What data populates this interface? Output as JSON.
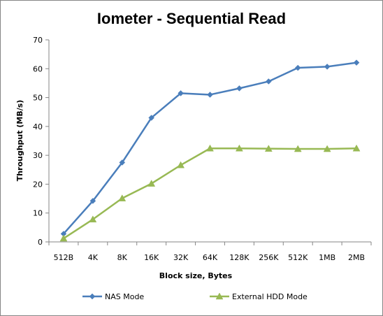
{
  "chart_data": {
    "type": "line",
    "title": "Iometer - Sequential Read",
    "xlabel": "Block size, Bytes",
    "ylabel": "Throughput (MB/s)",
    "categories": [
      "512B",
      "4K",
      "8K",
      "16K",
      "32K",
      "64K",
      "128K",
      "256K",
      "512K",
      "1MB",
      "2MB"
    ],
    "ylim": [
      0,
      70
    ],
    "yticks": [
      0,
      10,
      20,
      30,
      40,
      50,
      60,
      70
    ],
    "grid": false,
    "legend_position": "bottom",
    "series": [
      {
        "name": "NAS Mode",
        "color": "#4a7ebb",
        "marker": "diamond",
        "values": [
          2.8,
          14.2,
          27.5,
          43.0,
          51.5,
          51.0,
          53.2,
          55.6,
          60.3,
          60.7,
          62.1
        ]
      },
      {
        "name": "External HDD Mode",
        "color": "#98b954",
        "marker": "triangle",
        "values": [
          1.2,
          7.8,
          15.1,
          20.2,
          26.6,
          32.4,
          32.4,
          32.3,
          32.2,
          32.2,
          32.4
        ]
      }
    ]
  }
}
